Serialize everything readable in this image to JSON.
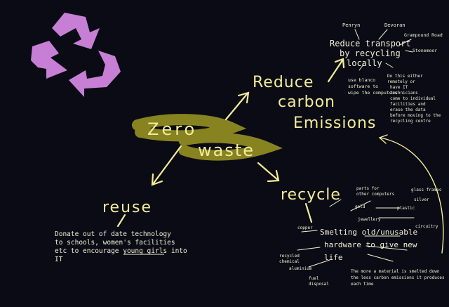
{
  "diagram": {
    "center": {
      "line1": "Zero",
      "line2": "waste"
    },
    "reduce_carbon": {
      "line1": "Reduce",
      "line2": "carbon",
      "line3": "Emissions",
      "sub_branch": {
        "line1": "Reduce transport",
        "line2": "by recycling",
        "line3": "locally"
      },
      "notes": {
        "penryn": "Penryn",
        "devoran": "Devoran",
        "grampound": "Grampound Road",
        "stonemoor": "Stonemoor",
        "disk_line1": "use blanco",
        "disk_line2": "software to",
        "disk_line3": "wipe the computers",
        "right_line1": "Do this either",
        "right_line2": "remotely or",
        "right_line3": "have IT",
        "right_line4": "technicians",
        "right_line5": "come to individual",
        "right_line6": "facilities and",
        "right_line7": "erase the data",
        "right_line8": "before moving to the",
        "right_line9": "recycling centre"
      }
    },
    "reuse": {
      "label": "reuse",
      "line1": "Donate out of date technology",
      "line2": "to schools, women's facilities",
      "line3": "etc to encourage young girls into",
      "line4": "IT"
    },
    "recycle": {
      "label": "recycle",
      "main_line1": "Smelting old/unusable",
      "main_line2": "hardware to give new",
      "main_line3": "life",
      "bottom_line1": "The more a material is smelted down",
      "bottom_line2": "the less carbon emissions it produces",
      "bottom_line3": "each time",
      "materials": {
        "m1": "parts for",
        "m2": "other computers",
        "m3": "glass frames",
        "m4": "gold",
        "m5": "silver",
        "m6": "jewellery",
        "m7": "plastic",
        "m8": "copper",
        "m9": "circuitry",
        "m10": "aluminium",
        "m11": "recycled",
        "m12": "chemical",
        "m13": "fuel",
        "m14": "disposal"
      }
    },
    "colors": {
      "background": "#0a0b14",
      "chalk_yellow": "#f4ec9a",
      "chalk_white": "#f3f0d8",
      "highlight": "#8f8a22",
      "recycle_logo": "#c77fd6"
    },
    "logo_icon": "recycle-icon"
  }
}
